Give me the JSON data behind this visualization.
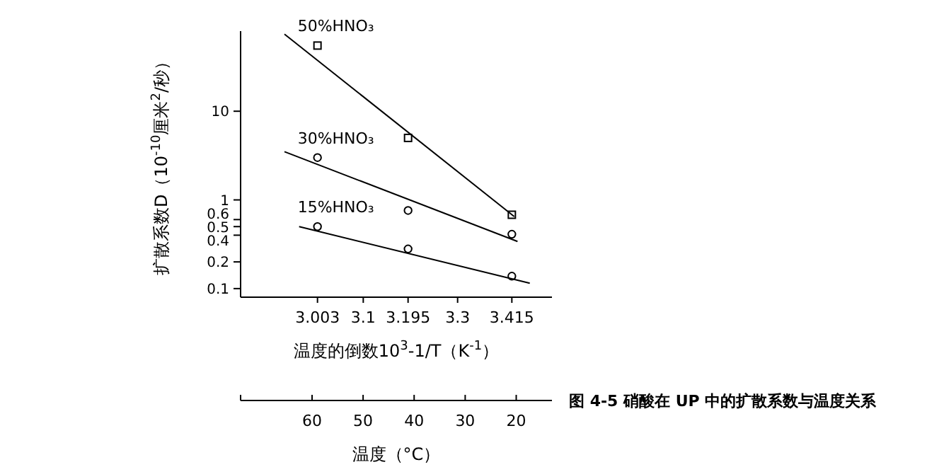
{
  "chart_data": {
    "type": "scatter",
    "title": "图 4-5 硝酸在 UP 中的扩散系数与温度关系",
    "xlabel": "温度的倒数10$^{3}$-1/T（K$^{-1}$）",
    "ylabel": "扩散系数D（10$^{-10}$厘米$^{2}$/秒）",
    "x2label": "温度（°C）",
    "log": "y",
    "grid": false,
    "legend": false,
    "xlim": [
      2.84,
      3.5
    ],
    "xticks": [
      3.003,
      3.1,
      3.195,
      3.3,
      3.415
    ],
    "x2lim": [
      74,
      13
    ],
    "x2ticks": [
      60,
      50,
      40,
      30,
      20
    ],
    "ylim": [
      0.08,
      80
    ],
    "yticks": [
      10,
      1,
      0.6,
      0.5,
      0.4,
      0.2,
      0.1
    ],
    "series": [
      {
        "name": "50%HNO₃",
        "marker": "square",
        "color": "#000000",
        "x": [
          3.003,
          3.195,
          3.415
        ],
        "values": [
          55,
          5,
          0.68
        ]
      },
      {
        "type": "line",
        "color": "#000000",
        "x": [
          2.933,
          3.42
        ],
        "values": [
          74,
          0.65
        ]
      },
      {
        "name": "30%HNO₃",
        "marker": "circle",
        "color": "#000000",
        "x": [
          3.003,
          3.195,
          3.415
        ],
        "values": [
          3,
          0.76,
          0.41
        ]
      },
      {
        "type": "line",
        "color": "#000000",
        "x": [
          2.933,
          3.427
        ],
        "values": [
          3.5,
          0.34
        ]
      },
      {
        "name": "15%HNO₃",
        "marker": "circle",
        "color": "#000000",
        "x": [
          3.003,
          3.195,
          3.415
        ],
        "values": [
          0.5,
          0.28,
          0.138
        ]
      },
      {
        "type": "line",
        "color": "#000000",
        "x": [
          2.964,
          3.453
        ],
        "values": [
          0.5,
          0.115
        ]
      }
    ]
  }
}
